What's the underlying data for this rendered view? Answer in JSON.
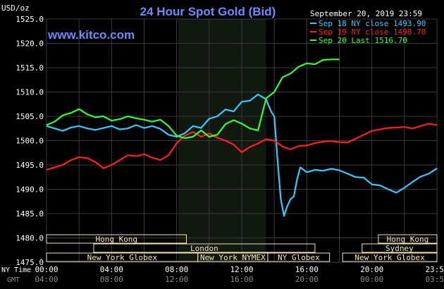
{
  "header": {
    "title": "24 Hour Spot Gold (Bid)",
    "unit": "USD/oz",
    "site": "www.kitco.com",
    "timestamp": "September 20, 2019 23:59"
  },
  "colors": {
    "background": "#000000",
    "plot_bg": "#000000",
    "shade": "#101810",
    "grid": "#3a3a3a",
    "axis_text": "#ffffff",
    "title": "#6b8cff",
    "site": "#6b8cff",
    "session_box": "#f5e6b4",
    "session_text": "#000000"
  },
  "chart_data": {
    "type": "line",
    "title": "24 Hour Spot Gold (Bid)",
    "ylabel": "USD/oz",
    "ylim": [
      1475,
      1525
    ],
    "yticks": [
      "1525.0",
      "1520.0",
      "1515.0",
      "1510.0",
      "1505.0",
      "1500.0",
      "1495.0",
      "1490.0",
      "1485.0",
      "1480.0",
      "1475.0"
    ],
    "ytick_values": [
      1525,
      1520,
      1515,
      1510,
      1505,
      1500,
      1495,
      1490,
      1485,
      1480,
      1475
    ],
    "xlim": [
      0,
      24
    ],
    "xtick_values": [
      0,
      4,
      8,
      12,
      16,
      20,
      24
    ],
    "ny_label": "NY Time",
    "gmt_label": "GMT",
    "ny_ticks": [
      "00:00",
      "04:00",
      "08:00",
      "12:00",
      "16:00",
      "20:00",
      "23:59"
    ],
    "gmt_ticks": [
      "04:00",
      "08:00",
      "12:00",
      "16:00",
      "20:00",
      "00:00",
      "03:59"
    ],
    "shaded_range": [
      8.1,
      13.5
    ],
    "grid": true,
    "legend_position": "top-right",
    "series": [
      {
        "name": "Sep 18 NY close 1493.90",
        "color": "#33ccff",
        "x": [
          0,
          0.5,
          1,
          1.5,
          2,
          2.5,
          3,
          3.5,
          4,
          4.5,
          5,
          5.5,
          6,
          6.5,
          7,
          7.5,
          8,
          8.5,
          9,
          9.5,
          10,
          10.5,
          11,
          11.5,
          12,
          12.5,
          13,
          13.5,
          13.8,
          14,
          14.2,
          14.4,
          14.6,
          14.8,
          15,
          15.2,
          15.4,
          15.6,
          16,
          16.5,
          17,
          17.5,
          18,
          18.5,
          19,
          19.5,
          20,
          20.5,
          21,
          21.5,
          22,
          22.5,
          23,
          23.5,
          24
        ],
        "y": [
          1503,
          1502.5,
          1502,
          1502.7,
          1503,
          1502.5,
          1502.2,
          1502.6,
          1503,
          1502.3,
          1502.5,
          1503.2,
          1502.6,
          1503,
          1502.4,
          1501.2,
          1500.8,
          1501.5,
          1503,
          1502.6,
          1504.5,
          1505,
          1506.4,
          1506,
          1508,
          1508.2,
          1509.5,
          1508.5,
          1506,
          1505,
          1496,
          1488,
          1484.5,
          1486.5,
          1488,
          1488.5,
          1492,
          1494.5,
          1493.5,
          1494,
          1493.8,
          1494.2,
          1493.9,
          1493.2,
          1492.5,
          1492.4,
          1491,
          1490.8,
          1490,
          1489.3,
          1490.3,
          1491.5,
          1492.6,
          1493.2,
          1494.3
        ]
      },
      {
        "name": "Sep 19 NY close 1498.70",
        "color": "#ff2020",
        "x": [
          0,
          0.5,
          1,
          1.5,
          2,
          2.5,
          3,
          3.5,
          4,
          4.5,
          5,
          5.5,
          6,
          6.5,
          7,
          7.5,
          8,
          8.5,
          9,
          9.5,
          10,
          10.5,
          11,
          11.5,
          12,
          12.5,
          13,
          13.5,
          14,
          14.5,
          15,
          15.5,
          16,
          16.5,
          17,
          17.5,
          18,
          18.5,
          19,
          19.5,
          20,
          20.5,
          21,
          21.5,
          22,
          22.5,
          23,
          23.5,
          24
        ],
        "y": [
          1494,
          1494.5,
          1495,
          1496,
          1496.6,
          1496.4,
          1495.6,
          1494.3,
          1495,
          1496,
          1497,
          1496.8,
          1497.2,
          1496.5,
          1496,
          1497,
          1499.5,
          1501,
          1501.8,
          1500.8,
          1501.5,
          1500.6,
          1500,
          1499.2,
          1497.6,
          1498.7,
          1499.4,
          1500.3,
          1500,
          1498.8,
          1498.2,
          1498.9,
          1499,
          1499.5,
          1499.8,
          1499.9,
          1499.7,
          1499.6,
          1500.4,
          1501.2,
          1502,
          1502.3,
          1502.6,
          1502.7,
          1502.8,
          1502.5,
          1503,
          1503.5,
          1503.2
        ]
      },
      {
        "name": "Sep 20 Last 1516.70",
        "color": "#33ff33",
        "x": [
          0,
          0.5,
          1,
          1.5,
          2,
          2.5,
          3,
          3.5,
          4,
          4.5,
          5,
          5.5,
          6,
          6.5,
          7,
          7.5,
          8,
          8.5,
          9,
          9.5,
          10,
          10.5,
          11,
          11.5,
          12,
          12.5,
          13,
          13.5,
          14,
          14.5,
          15,
          15.5,
          16,
          16.5,
          17,
          17.5,
          18
        ],
        "y": [
          1503.2,
          1503.9,
          1505.2,
          1505.7,
          1506.5,
          1505.4,
          1504.8,
          1505,
          1504.1,
          1504.4,
          1505,
          1504.6,
          1504.3,
          1503.9,
          1504.3,
          1503,
          1501,
          1500.5,
          1500.8,
          1502.1,
          1500.8,
          1501.2,
          1503.4,
          1504.2,
          1503.5,
          1502.5,
          1502.1,
          1508.7,
          1510,
          1513,
          1513.8,
          1515.2,
          1515.9,
          1515.7,
          1516.6,
          1516.7,
          1516.7
        ]
      }
    ],
    "sessions": [
      {
        "label": "Hong Kong",
        "start": 0,
        "end": 8.6,
        "row": 0
      },
      {
        "label": "London",
        "start": 2.9,
        "end": 16.5,
        "row": 1
      },
      {
        "label": "New York Globex",
        "start": 0,
        "end": 9.3,
        "row": 2
      },
      {
        "label": "New York NYMEX",
        "start": 9.3,
        "end": 13.6,
        "row": 2
      },
      {
        "label": "NY Globex",
        "start": 13.6,
        "end": 17.4,
        "row": 2
      },
      {
        "label": "Hong Kong",
        "start": 20.4,
        "end": 24,
        "row": 0
      },
      {
        "label": "Sydney",
        "start": 19.4,
        "end": 24,
        "row": 1
      },
      {
        "label": "New York Globex",
        "start": 18.2,
        "end": 24,
        "row": 2
      }
    ]
  }
}
